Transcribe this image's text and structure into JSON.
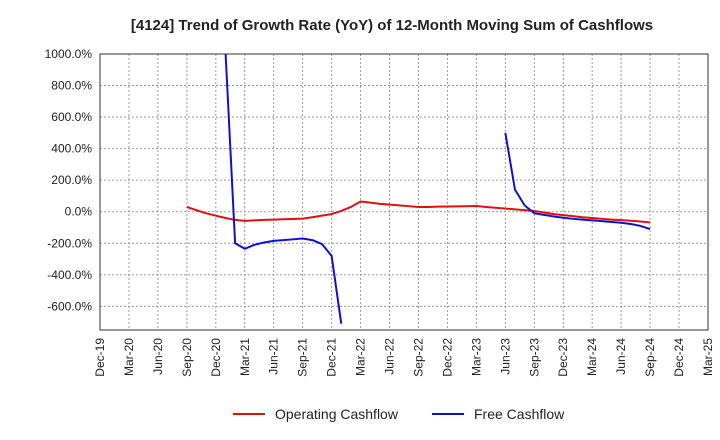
{
  "chart_data": {
    "type": "line",
    "title": "[4124]  Trend of Growth Rate (YoY) of 12-Month Moving Sum of Cashflows",
    "xlabel": "",
    "ylabel": "",
    "x_ticks": [
      "Dec-19",
      "Mar-20",
      "Jun-20",
      "Sep-20",
      "Dec-20",
      "Mar-21",
      "Jun-21",
      "Sep-21",
      "Dec-21",
      "Mar-22",
      "Jun-22",
      "Sep-22",
      "Dec-22",
      "Mar-23",
      "Jun-23",
      "Sep-23",
      "Dec-23",
      "Mar-24",
      "Jun-24",
      "Sep-24",
      "Dec-24",
      "Mar-25"
    ],
    "y_ticks": [
      "1000.0%",
      "800.0%",
      "600.0%",
      "400.0%",
      "200.0%",
      "0.0%",
      "-200.0%",
      "-400.0%",
      "-600.0%"
    ],
    "y_tick_values": [
      1000,
      800,
      600,
      400,
      200,
      0,
      -200,
      -400,
      -600
    ],
    "ylim": [
      -750,
      1000
    ],
    "grid": true,
    "legend_position": "bottom",
    "series": [
      {
        "name": "Operating Cashflow",
        "color": "#dd1111",
        "points": [
          [
            "Sep-20",
            30
          ],
          [
            "Oct-20",
            10
          ],
          [
            "Nov-20",
            -10
          ],
          [
            "Dec-20",
            -25
          ],
          [
            "Jan-21",
            -40
          ],
          [
            "Feb-21",
            -52
          ],
          [
            "Mar-21",
            -58
          ],
          [
            "Apr-21",
            -55
          ],
          [
            "May-21",
            -52
          ],
          [
            "Jun-21",
            -50
          ],
          [
            "Jul-21",
            -48
          ],
          [
            "Aug-21",
            -46
          ],
          [
            "Sep-21",
            -44
          ],
          [
            "Oct-21",
            -35
          ],
          [
            "Nov-21",
            -25
          ],
          [
            "Dec-21",
            -15
          ],
          [
            "Jan-22",
            5
          ],
          [
            "Feb-22",
            30
          ],
          [
            "Mar-22",
            65
          ],
          [
            "Apr-22",
            58
          ],
          [
            "May-22",
            50
          ],
          [
            "Jun-22",
            45
          ],
          [
            "Jul-22",
            40
          ],
          [
            "Aug-22",
            35
          ],
          [
            "Sep-22",
            30
          ],
          [
            "Oct-22",
            30
          ],
          [
            "Nov-22",
            32
          ],
          [
            "Dec-22",
            33
          ],
          [
            "Jan-23",
            34
          ],
          [
            "Feb-23",
            35
          ],
          [
            "Mar-23",
            36
          ],
          [
            "Apr-23",
            30
          ],
          [
            "May-23",
            25
          ],
          [
            "Jun-23",
            20
          ],
          [
            "Jul-23",
            15
          ],
          [
            "Aug-23",
            10
          ],
          [
            "Sep-23",
            5
          ],
          [
            "Oct-23",
            -5
          ],
          [
            "Nov-23",
            -15
          ],
          [
            "Dec-23",
            -22
          ],
          [
            "Jan-24",
            -28
          ],
          [
            "Feb-24",
            -35
          ],
          [
            "Mar-24",
            -40
          ],
          [
            "Apr-24",
            -45
          ],
          [
            "May-24",
            -50
          ],
          [
            "Jun-24",
            -53
          ],
          [
            "Jul-24",
            -57
          ],
          [
            "Aug-24",
            -62
          ],
          [
            "Sep-24",
            -68
          ]
        ]
      },
      {
        "name": "Free Cashflow",
        "color": "#1111cc",
        "segments": [
          [
            [
              "Jan-21",
              1020
            ],
            [
              "Feb-21",
              -200
            ],
            [
              "Mar-21",
              -235
            ],
            [
              "Apr-21",
              -210
            ],
            [
              "May-21",
              -195
            ],
            [
              "Jun-21",
              -185
            ],
            [
              "Jul-21",
              -180
            ],
            [
              "Aug-21",
              -175
            ],
            [
              "Sep-21",
              -170
            ],
            [
              "Oct-21",
              -180
            ],
            [
              "Nov-21",
              -205
            ],
            [
              "Dec-21",
              -280
            ],
            [
              "Jan-22",
              -710
            ]
          ],
          [
            [
              "Jun-23",
              500
            ],
            [
              "Jul-23",
              140
            ],
            [
              "Aug-23",
              40
            ],
            [
              "Sep-23",
              -10
            ],
            [
              "Oct-23",
              -20
            ],
            [
              "Nov-23",
              -30
            ],
            [
              "Dec-23",
              -38
            ],
            [
              "Jan-24",
              -45
            ],
            [
              "Feb-24",
              -50
            ],
            [
              "Mar-24",
              -55
            ],
            [
              "Apr-24",
              -60
            ],
            [
              "May-24",
              -65
            ],
            [
              "Jun-24",
              -70
            ],
            [
              "Jul-24",
              -78
            ],
            [
              "Aug-24",
              -90
            ],
            [
              "Sep-24",
              -110
            ]
          ]
        ]
      }
    ]
  }
}
